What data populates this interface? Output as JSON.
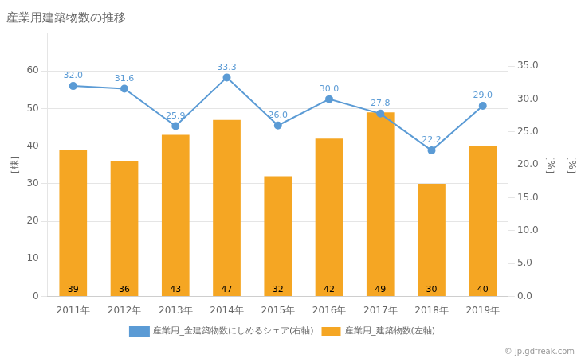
{
  "chart_data": {
    "type": "bar",
    "title": "産業用建築物数の推移",
    "categories": [
      "2011年",
      "2012年",
      "2013年",
      "2014年",
      "2015年",
      "2016年",
      "2017年",
      "2018年",
      "2019年"
    ],
    "series": [
      {
        "name": "産業用_建築物数(左軸)",
        "type": "bar",
        "color": "#F5A623",
        "values": [
          39,
          36,
          43,
          47,
          32,
          42,
          49,
          30,
          40
        ]
      },
      {
        "name": "産業用_全建築物数にしめるシェア(右軸)",
        "type": "line",
        "axis": "y2",
        "color": "#5B9BD5",
        "marker": "circle",
        "values": [
          32.0,
          31.6,
          25.9,
          33.3,
          26.0,
          30.0,
          27.8,
          22.2,
          29.0
        ],
        "value_labels": [
          "32.0",
          "31.6",
          "25.9",
          "33.3",
          "26.0",
          "30.0",
          "27.8",
          "22.2",
          "29.0"
        ]
      }
    ],
    "ylabel": "［棟］",
    "y2label": "［%］",
    "ylim": [
      0,
      70
    ],
    "yticks": [
      0,
      10,
      20,
      30,
      40,
      50,
      60
    ],
    "y2lim": [
      0,
      40
    ],
    "y2ticks": [
      {
        "value": 0,
        "label": "0.0"
      },
      {
        "value": 5,
        "label": "5.0"
      },
      {
        "value": 10,
        "label": "10.0"
      },
      {
        "value": 15,
        "label": "15.0"
      },
      {
        "value": 20,
        "label": "20.0"
      },
      {
        "value": 25,
        "label": "25.0"
      },
      {
        "value": 30,
        "label": "30.0"
      },
      {
        "value": 35,
        "label": "35.0"
      }
    ],
    "annotations": [
      "［%］",
      "© jp.gdfreak.com"
    ],
    "grid": true,
    "legend": "bottom",
    "data_labels": true
  }
}
